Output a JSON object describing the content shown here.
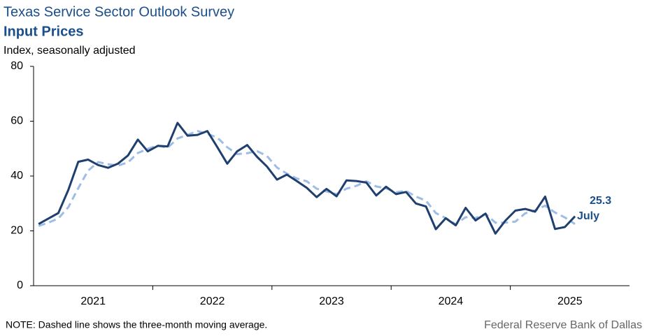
{
  "chart_data": {
    "type": "line",
    "title": "Texas Service Sector Outlook Survey",
    "subtitle": "Input Prices",
    "y_label": "Index, seasonally adjusted",
    "note": "NOTE: Dashed line shows the three-month moving average.",
    "source": "Federal Reserve Bank of Dallas",
    "annotation": "July",
    "x": [
      2021.042,
      2021.125,
      2021.208,
      2021.292,
      2021.375,
      2021.458,
      2021.542,
      2021.625,
      2021.708,
      2021.792,
      2021.875,
      2021.958,
      2022.042,
      2022.125,
      2022.208,
      2022.292,
      2022.375,
      2022.458,
      2022.542,
      2022.625,
      2022.708,
      2022.792,
      2022.875,
      2022.958,
      2023.042,
      2023.125,
      2023.208,
      2023.292,
      2023.375,
      2023.458,
      2023.542,
      2023.625,
      2023.708,
      2023.792,
      2023.875,
      2023.958,
      2024.042,
      2024.125,
      2024.208,
      2024.292,
      2024.375,
      2024.458,
      2024.542,
      2024.625,
      2024.708,
      2024.792,
      2024.875,
      2024.958,
      2025.042,
      2025.125,
      2025.208,
      2025.292,
      2025.375,
      2025.458,
      2025.542
    ],
    "series": [
      {
        "name": "Input Prices",
        "color": "#1f3f6e",
        "dashed": false,
        "values": [
          22.5,
          24.5,
          26.5,
          35,
          45.2,
          46,
          44,
          43,
          44.5,
          47.5,
          53.3,
          49,
          51,
          50.8,
          59.4,
          54.7,
          55,
          56.4,
          50.5,
          44.5,
          49,
          51.3,
          47,
          43.5,
          38.7,
          40.5,
          38.2,
          35.7,
          32.3,
          35.3,
          32.6,
          38.4,
          38.2,
          37.6,
          32.9,
          36.1,
          33.4,
          34.2,
          30,
          28.9,
          20.6,
          24.6,
          22,
          28.4,
          23.8,
          26.3,
          19,
          23.7,
          27.4,
          28,
          27,
          32.5,
          20.7,
          21.4,
          25.3
        ]
      },
      {
        "name": "Three-month moving average",
        "color": "#9dbde6",
        "dashed": true,
        "values": [
          21.8,
          23,
          24.5,
          28.7,
          35.6,
          42,
          45.1,
          44.3,
          43.8,
          45,
          48.4,
          49.9,
          51.1,
          50.3,
          53.7,
          55,
          56.4,
          55.4,
          54,
          50.5,
          48,
          48.3,
          49.1,
          47.3,
          43.1,
          40.9,
          39.1,
          38.1,
          35.4,
          34.4,
          33.4,
          35.4,
          36.4,
          38.1,
          36.2,
          35.5,
          34.1,
          34.6,
          32.5,
          31,
          26.5,
          24.7,
          22.4,
          25,
          24.7,
          26.2,
          23,
          23,
          23.4,
          26.4,
          27.5,
          29.2,
          26.7,
          24.9,
          22.5
        ]
      }
    ],
    "xlim": [
      2021,
      2026
    ],
    "xticks": [
      {
        "value": 2021.5,
        "label": "2021"
      },
      {
        "value": 2022.5,
        "label": "2022"
      },
      {
        "value": 2023.5,
        "label": "2023"
      },
      {
        "value": 2024.5,
        "label": "2024"
      },
      {
        "value": 2025.5,
        "label": "2025"
      }
    ],
    "ylim": [
      0,
      80
    ],
    "yticks": [
      0,
      20,
      40,
      60,
      80
    ],
    "grid": false
  }
}
